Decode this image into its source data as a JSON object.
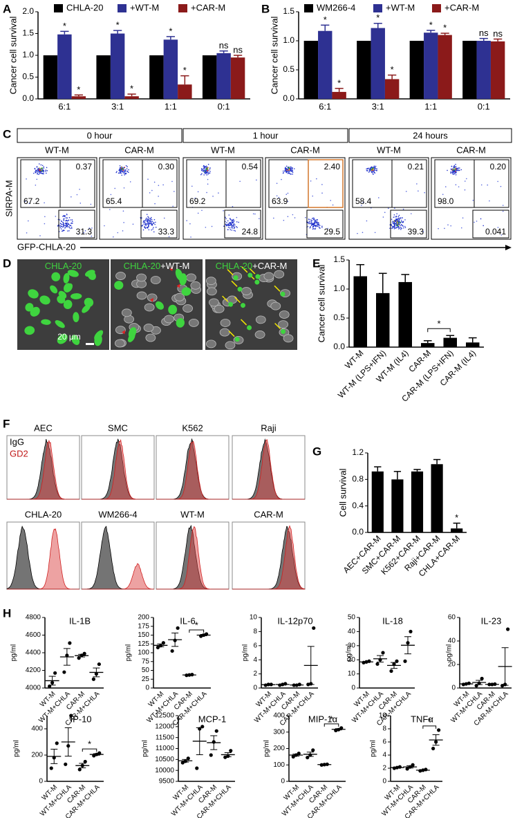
{
  "panel_labels": [
    "A",
    "B",
    "C",
    "D",
    "E",
    "F",
    "G",
    "H"
  ],
  "chart_data": [
    {
      "type": "bar",
      "ylabel": "Cancer cell survival",
      "categories": [
        "6:1",
        "3:1",
        "1:1",
        "0:1"
      ],
      "series": [
        {
          "name": "CHLA-20",
          "color": "#000000",
          "values": [
            1,
            1,
            1,
            1
          ]
        },
        {
          "name": "+WT-M",
          "color": "#2e3192",
          "values": [
            1.48,
            1.5,
            1.36,
            1.05
          ],
          "errors": [
            0.07,
            0.07,
            0.07,
            0.05
          ],
          "significance": [
            "*",
            "*",
            "*",
            "ns"
          ]
        },
        {
          "name": "+CAR-M",
          "color": "#8b1a1a",
          "values": [
            0.06,
            0.06,
            0.33,
            0.95
          ],
          "errors": [
            0.03,
            0.05,
            0.2,
            0.05
          ],
          "significance": [
            "*",
            "*",
            "*",
            "ns"
          ]
        }
      ],
      "ylim": [
        0,
        2
      ],
      "yticks": [
        {
          "value": 0,
          "label": "0.0"
        },
        0.5,
        {
          "value": 1,
          "label": "1.0"
        },
        1.5,
        {
          "value": 2,
          "label": "2.0"
        }
      ]
    },
    {
      "type": "bar",
      "ylabel": "Cancer cell survival",
      "categories": [
        "6:1",
        "3:1",
        "1:1",
        "0:1"
      ],
      "series": [
        {
          "name": "WM266-4",
          "color": "#000000",
          "values": [
            1,
            1,
            1,
            1
          ]
        },
        {
          "name": "+WT-M",
          "color": "#2e3192",
          "values": [
            1.17,
            1.22,
            1.14,
            1.0
          ],
          "errors": [
            0.1,
            0.08,
            0.04,
            0.04
          ],
          "significance": [
            "*",
            "*",
            "*",
            "ns"
          ]
        },
        {
          "name": "+CAR-M",
          "color": "#8b1a1a",
          "values": [
            0.12,
            0.34,
            1.1,
            0.99
          ],
          "errors": [
            0.06,
            0.07,
            0.03,
            0.04
          ],
          "significance": [
            "*",
            "*",
            "*",
            "ns"
          ]
        }
      ],
      "ylim": [
        0,
        1.5
      ],
      "yticks": [
        {
          "value": 0,
          "label": "0.0"
        },
        0.5,
        {
          "value": 1,
          "label": "1.0"
        },
        1.5
      ]
    },
    {
      "type": "bar",
      "ylabel": "Cancer cell survival",
      "categories": [
        "WT-M",
        "WT-M (LPS+IFN)",
        "WT-M (IL4)",
        "CAR-M",
        "CAR-M (LPS+IFN)",
        "CAR-M (IL4)"
      ],
      "values": [
        1.22,
        0.93,
        1.12,
        0.07,
        0.16,
        0.08
      ],
      "errors": [
        0.2,
        0.34,
        0.13,
        0.04,
        0.04,
        0.08
      ],
      "color": "#000000",
      "annotation": "*",
      "ylim": [
        0,
        1.5
      ],
      "yticks": [
        {
          "value": 0,
          "label": "0.0"
        },
        0.5,
        {
          "value": 1,
          "label": "1.0"
        },
        1.5
      ]
    },
    {
      "type": "bar",
      "ylabel": "Cell survival",
      "categories": [
        "AEC+CAR-M",
        "SMC+CAR-M",
        "K562+CAR-M",
        "Raji+CAR-M",
        "CHLA+CAR-M"
      ],
      "values": [
        0.92,
        0.8,
        0.92,
        1.03,
        0.06
      ],
      "errors": [
        0.07,
        0.12,
        0.03,
        0.07,
        0.08
      ],
      "color": "#000000",
      "annotation": "*",
      "ylim": [
        0,
        1.2
      ],
      "yticks": [
        {
          "value": 0,
          "label": "0.0"
        },
        0.4,
        0.8,
        1.2
      ]
    },
    {
      "type": "dot",
      "title": "IL-1B",
      "ylabel": "pg/ml",
      "categories": [
        "WT-M",
        "WT-M+CHLA",
        "CAR-M",
        "CAR-M+CHLA"
      ],
      "points": [
        [
          4020,
          4060,
          4170
        ],
        [
          4180,
          4370,
          4510
        ],
        [
          4340,
          4370,
          4390
        ],
        [
          4100,
          4160,
          4270
        ]
      ],
      "means": [
        4083,
        4353,
        4367,
        4177
      ],
      "errors": [
        50,
        95,
        15,
        50
      ],
      "ylim": [
        4000,
        4800
      ],
      "yticks": [
        4000,
        4200,
        4400,
        4600,
        4800
      ]
    },
    {
      "type": "dot",
      "title": "IL-6",
      "ylabel": "pg/ml",
      "categories": [
        "WT-M",
        "WT-M+CHLA",
        "CAR-M",
        "CAR-M+CHLA"
      ],
      "points": [
        [
          115,
          120,
          128
        ],
        [
          105,
          135,
          170
        ],
        [
          36,
          37,
          38
        ],
        [
          147,
          150,
          153
        ]
      ],
      "means": [
        121,
        137,
        37,
        150
      ],
      "errors": [
        4,
        19,
        1,
        2
      ],
      "annotation": "*",
      "ylim": [
        0,
        200
      ],
      "yticks": [
        0,
        25,
        50,
        75,
        100,
        125,
        150,
        175,
        200
      ]
    },
    {
      "type": "dot",
      "title": "IL-12p70",
      "ylabel": "pg/ml",
      "categories": [
        "WT-M",
        "WT-M+CHLA",
        "CAR-M",
        "CAR-M+CHLA"
      ],
      "points": [
        [
          0.4,
          0.5,
          0.5
        ],
        [
          0.4,
          0.5,
          0.6
        ],
        [
          0.4,
          0.4,
          0.5
        ],
        [
          0.5,
          0.6,
          8.5
        ]
      ],
      "means": [
        0.47,
        0.5,
        0.43,
        3.2
      ],
      "errors": [
        0.03,
        0.06,
        0.03,
        2.7
      ],
      "ylim": [
        0,
        10
      ],
      "yticks": [
        0,
        2,
        4,
        6,
        8,
        10
      ]
    },
    {
      "type": "dot",
      "title": "IL-18",
      "ylabel": "pg/ml",
      "categories": [
        "WT-M",
        "WT-M+CHLA",
        "CAR-M",
        "CAR-M+CHLA"
      ],
      "points": [
        [
          18,
          18.5,
          19
        ],
        [
          17,
          20,
          25
        ],
        [
          12,
          17,
          19
        ],
        [
          19,
          32,
          40
        ]
      ],
      "means": [
        18.5,
        20.7,
        16,
        30.3
      ],
      "errors": [
        0.3,
        2.3,
        2.1,
        6.1
      ],
      "ylim": [
        0,
        50
      ],
      "yticks": [
        0,
        10,
        20,
        30,
        40,
        50
      ]
    },
    {
      "type": "dot",
      "title": "IL-23",
      "ylabel": "pg/ml",
      "categories": [
        "WT-M",
        "WT-M+CHLA",
        "CAR-M",
        "CAR-M+CHLA"
      ],
      "points": [
        [
          3,
          3.5,
          4
        ],
        [
          2,
          4,
          8
        ],
        [
          3,
          3,
          3.3
        ],
        [
          2,
          3,
          50
        ]
      ],
      "means": [
        3.5,
        4.7,
        3.1,
        18.3
      ],
      "errors": [
        0.3,
        1.8,
        0.1,
        16
      ],
      "ylim": [
        0,
        60
      ],
      "yticks": [
        0,
        20,
        40,
        60
      ]
    },
    {
      "type": "dot",
      "title": "IP-10",
      "ylabel": "pg/ml",
      "categories": [
        "WT-M",
        "WT-M+CHLA",
        "CAR-M",
        "CAR-M+CHLA"
      ],
      "points": [
        [
          100,
          180,
          290
        ],
        [
          130,
          270,
          500
        ],
        [
          90,
          120,
          150
        ],
        [
          195,
          205,
          215
        ]
      ],
      "means": [
        190,
        300,
        120,
        205
      ],
      "errors": [
        55,
        108,
        17,
        6
      ],
      "annotation": "*",
      "ylim": [
        0,
        500
      ],
      "yticks": [
        0,
        200,
        400
      ]
    },
    {
      "type": "dot",
      "title": "MCP-1",
      "ylabel": "pg/ml",
      "categories": [
        "WT-M",
        "WT-M+CHLA",
        "CAR-M",
        "CAR-M+CHLA"
      ],
      "points": [
        [
          10350,
          10420,
          10550
        ],
        [
          10100,
          11900,
          12000
        ],
        [
          10700,
          11300,
          11800
        ],
        [
          10600,
          10650,
          10900
        ]
      ],
      "means": [
        10440,
        11333,
        11267,
        10717
      ],
      "errors": [
        60,
        617,
        318,
        92
      ],
      "ylim": [
        9500,
        12500
      ],
      "yticks": [
        9500,
        10000,
        10500,
        11000,
        11500,
        12000,
        12500
      ]
    },
    {
      "type": "dot",
      "title": "MIP-1α",
      "ylabel": "pg/ml",
      "categories": [
        "WT-M",
        "WT-M+CHLA",
        "CAR-M",
        "CAR-M+CHLA"
      ],
      "points": [
        [
          150,
          160,
          170
        ],
        [
          145,
          160,
          190
        ],
        [
          100,
          102,
          104
        ],
        [
          310,
          315,
          325
        ]
      ],
      "means": [
        160,
        165,
        102,
        317
      ],
      "errors": [
        6,
        13,
        1,
        4
      ],
      "annotation": "*",
      "ylim": [
        0,
        400
      ],
      "yticks": [
        0,
        100,
        200,
        300,
        400
      ]
    },
    {
      "type": "dot",
      "title": "TNFα",
      "ylabel": "pg/ml",
      "categories": [
        "WT-M",
        "WT-M+CHLA",
        "CAR-M",
        "CAR-M+CHLA"
      ],
      "points": [
        [
          2,
          2.1,
          2.2
        ],
        [
          1.9,
          2.2,
          2.5
        ],
        [
          1.6,
          1.7,
          1.8
        ],
        [
          5,
          6,
          7.8
        ]
      ],
      "means": [
        2.1,
        2.2,
        1.7,
        6.3
      ],
      "errors": [
        0.06,
        0.17,
        0.06,
        0.8
      ],
      "annotation": "*",
      "ylim": [
        0,
        10
      ],
      "yticks": [
        0,
        2,
        4,
        6,
        8,
        10
      ]
    }
  ],
  "flow": {
    "timepoints": [
      "0 hour",
      "1 hour",
      "24 hours"
    ],
    "ylabel": "SIRPA-M",
    "xlabel": "GFP-CHLA-20",
    "plots": [
      {
        "label": "WT-M",
        "upper_left": "67.2",
        "upper_right": "0.37",
        "lower": "31.3"
      },
      {
        "label": "CAR-M",
        "upper_left": "65.4",
        "upper_right": "0.30",
        "lower": "33.3"
      },
      {
        "label": "WT-M",
        "upper_left": "69.2",
        "upper_right": "0.54",
        "lower": "24.8"
      },
      {
        "label": "CAR-M",
        "upper_left": "63.9",
        "upper_right": "2.40",
        "lower": "29.5"
      },
      {
        "label": "WT-M",
        "upper_left": "58.4",
        "upper_right": "0.21",
        "lower": "39.3"
      },
      {
        "label": "CAR-M",
        "upper_left": "98.0",
        "upper_right": "0.20",
        "lower": "0.041"
      }
    ]
  },
  "microscopy": {
    "panels": [
      {
        "parts": [
          "CHLA-20"
        ]
      },
      {
        "parts": [
          "CHLA-20",
          "+WT-M"
        ]
      },
      {
        "parts": [
          "CHLA-20",
          "+CAR-M"
        ]
      }
    ],
    "scale_bar": "20 μm"
  },
  "histograms": {
    "legend": [
      "IgG",
      "GD2"
    ],
    "samples": [
      "AEC",
      "SMC",
      "K562",
      "Raji",
      "CHLA-20",
      "WM266-4",
      "WT-M",
      "CAR-M"
    ]
  }
}
